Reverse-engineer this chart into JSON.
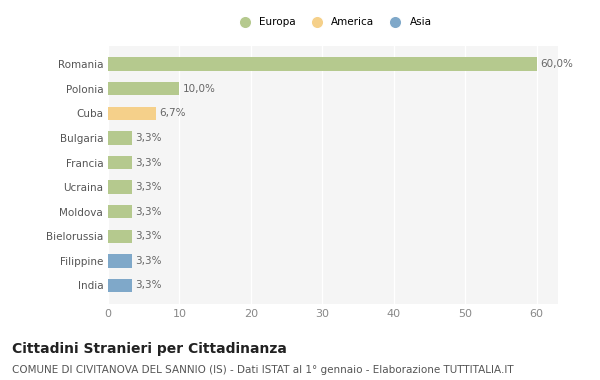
{
  "countries": [
    "Romania",
    "Polonia",
    "Cuba",
    "Bulgaria",
    "Francia",
    "Ucraina",
    "Moldova",
    "Bielorussia",
    "Filippine",
    "India"
  ],
  "values": [
    60.0,
    10.0,
    6.7,
    3.3,
    3.3,
    3.3,
    3.3,
    3.3,
    3.3,
    3.3
  ],
  "labels": [
    "60,0%",
    "10,0%",
    "6,7%",
    "3,3%",
    "3,3%",
    "3,3%",
    "3,3%",
    "3,3%",
    "3,3%",
    "3,3%"
  ],
  "bar_colors": [
    "#b5c98e",
    "#b5c98e",
    "#f5d08a",
    "#b5c98e",
    "#b5c98e",
    "#b5c98e",
    "#b5c98e",
    "#b5c98e",
    "#7fa8c9",
    "#7fa8c9"
  ],
  "xlim": [
    0,
    63
  ],
  "xticks": [
    0,
    10,
    20,
    30,
    40,
    50,
    60
  ],
  "title": "Cittadini Stranieri per Cittadinanza",
  "subtitle": "COMUNE DI CIVITANOVA DEL SANNIO (IS) - Dati ISTAT al 1° gennaio - Elaborazione TUTTITALIA.IT",
  "legend_labels": [
    "Europa",
    "America",
    "Asia"
  ],
  "legend_colors": [
    "#b5c98e",
    "#f5d08a",
    "#7fa8c9"
  ],
  "bg_color": "#ffffff",
  "plot_bg_color": "#f5f5f5",
  "grid_color": "#ffffff",
  "title_fontsize": 10,
  "subtitle_fontsize": 7.5,
  "label_fontsize": 7.5,
  "tick_fontsize": 8
}
